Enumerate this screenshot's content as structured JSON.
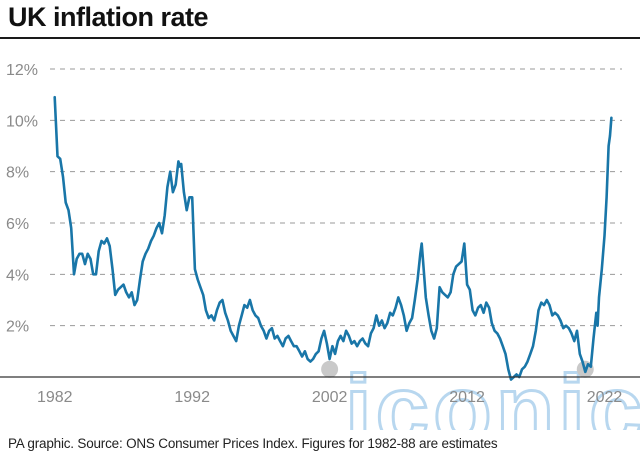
{
  "title": "UK inflation rate",
  "source": "PA graphic. Source: ONS Consumer Prices Index. Figures for 1982-88 are estimates",
  "watermark": "iconic",
  "colors": {
    "line": "#1976a8",
    "marker": "#c9c9c9",
    "grid": "#9a9a9a",
    "tick": "#8a8a8a"
  },
  "chart_data": {
    "type": "line",
    "title": "UK inflation rate",
    "xlabel": "",
    "ylabel": "",
    "y_unit": "%",
    "xlim": [
      1981.8,
      2022.4
    ],
    "ylim": [
      0,
      12
    ],
    "grid": true,
    "y_ticks": [
      {
        "value": 2,
        "label": "2%"
      },
      {
        "value": 4,
        "label": "4%"
      },
      {
        "value": 6,
        "label": "6%"
      },
      {
        "value": 8,
        "label": "8%"
      },
      {
        "value": 10,
        "label": "10%"
      },
      {
        "value": 12,
        "label": "12%"
      }
    ],
    "x_ticks": [
      {
        "value": 1982,
        "label": "1982"
      },
      {
        "value": 1992,
        "label": "1992"
      },
      {
        "value": 2002,
        "label": "2002"
      },
      {
        "value": 2012,
        "label": "2012"
      },
      {
        "value": 2022,
        "label": "2022"
      }
    ],
    "series": [
      {
        "points": [
          [
            1982.0,
            10.9
          ],
          [
            1982.2,
            8.6
          ],
          [
            1982.4,
            8.5
          ],
          [
            1982.6,
            7.8
          ],
          [
            1982.8,
            6.8
          ],
          [
            1983.0,
            6.5
          ],
          [
            1983.2,
            5.8
          ],
          [
            1983.4,
            4.0
          ],
          [
            1983.6,
            4.6
          ],
          [
            1983.8,
            4.8
          ],
          [
            1984.0,
            4.8
          ],
          [
            1984.2,
            4.4
          ],
          [
            1984.4,
            4.8
          ],
          [
            1984.6,
            4.6
          ],
          [
            1984.8,
            4.0
          ],
          [
            1985.0,
            4.0
          ],
          [
            1985.2,
            4.9
          ],
          [
            1985.4,
            5.3
          ],
          [
            1985.6,
            5.2
          ],
          [
            1985.8,
            5.4
          ],
          [
            1986.0,
            5.1
          ],
          [
            1986.2,
            4.2
          ],
          [
            1986.4,
            3.2
          ],
          [
            1986.6,
            3.4
          ],
          [
            1986.8,
            3.5
          ],
          [
            1987.0,
            3.6
          ],
          [
            1987.2,
            3.3
          ],
          [
            1987.4,
            3.1
          ],
          [
            1987.6,
            3.3
          ],
          [
            1987.8,
            2.8
          ],
          [
            1988.0,
            3.0
          ],
          [
            1988.2,
            3.8
          ],
          [
            1988.4,
            4.5
          ],
          [
            1988.6,
            4.8
          ],
          [
            1988.8,
            5.0
          ],
          [
            1989.0,
            5.3
          ],
          [
            1989.2,
            5.5
          ],
          [
            1989.4,
            5.8
          ],
          [
            1989.6,
            6.0
          ],
          [
            1989.8,
            5.6
          ],
          [
            1990.0,
            6.3
          ],
          [
            1990.2,
            7.4
          ],
          [
            1990.4,
            8.0
          ],
          [
            1990.6,
            7.2
          ],
          [
            1990.8,
            7.5
          ],
          [
            1991.0,
            8.4
          ],
          [
            1991.1,
            8.2
          ],
          [
            1991.2,
            8.3
          ],
          [
            1991.4,
            7.2
          ],
          [
            1991.6,
            6.5
          ],
          [
            1991.8,
            7.0
          ],
          [
            1992.0,
            7.0
          ],
          [
            1992.2,
            4.2
          ],
          [
            1992.4,
            3.8
          ],
          [
            1992.6,
            3.5
          ],
          [
            1992.8,
            3.2
          ],
          [
            1993.0,
            2.6
          ],
          [
            1993.2,
            2.3
          ],
          [
            1993.4,
            2.4
          ],
          [
            1993.6,
            2.2
          ],
          [
            1993.8,
            2.6
          ],
          [
            1994.0,
            2.9
          ],
          [
            1994.2,
            3.0
          ],
          [
            1994.4,
            2.5
          ],
          [
            1994.6,
            2.2
          ],
          [
            1994.8,
            1.8
          ],
          [
            1995.0,
            1.6
          ],
          [
            1995.2,
            1.4
          ],
          [
            1995.4,
            2.0
          ],
          [
            1995.6,
            2.4
          ],
          [
            1995.8,
            2.8
          ],
          [
            1996.0,
            2.7
          ],
          [
            1996.2,
            3.0
          ],
          [
            1996.4,
            2.6
          ],
          [
            1996.6,
            2.4
          ],
          [
            1996.8,
            2.3
          ],
          [
            1997.0,
            2.0
          ],
          [
            1997.2,
            1.8
          ],
          [
            1997.4,
            1.5
          ],
          [
            1997.6,
            1.8
          ],
          [
            1997.8,
            1.9
          ],
          [
            1998.0,
            1.5
          ],
          [
            1998.2,
            1.6
          ],
          [
            1998.4,
            1.4
          ],
          [
            1998.6,
            1.2
          ],
          [
            1998.8,
            1.5
          ],
          [
            1999.0,
            1.6
          ],
          [
            1999.2,
            1.4
          ],
          [
            1999.4,
            1.2
          ],
          [
            1999.6,
            1.2
          ],
          [
            1999.8,
            1.0
          ],
          [
            2000.0,
            0.8
          ],
          [
            2000.2,
            1.0
          ],
          [
            2000.4,
            0.7
          ],
          [
            2000.6,
            0.6
          ],
          [
            2000.8,
            0.7
          ],
          [
            2001.0,
            0.9
          ],
          [
            2001.2,
            1.0
          ],
          [
            2001.4,
            1.5
          ],
          [
            2001.6,
            1.8
          ],
          [
            2001.8,
            1.3
          ],
          [
            2002.0,
            0.7
          ],
          [
            2002.2,
            1.2
          ],
          [
            2002.4,
            0.9
          ],
          [
            2002.6,
            1.4
          ],
          [
            2002.8,
            1.6
          ],
          [
            2003.0,
            1.4
          ],
          [
            2003.2,
            1.8
          ],
          [
            2003.4,
            1.6
          ],
          [
            2003.6,
            1.3
          ],
          [
            2003.8,
            1.4
          ],
          [
            2004.0,
            1.2
          ],
          [
            2004.2,
            1.4
          ],
          [
            2004.4,
            1.5
          ],
          [
            2004.6,
            1.3
          ],
          [
            2004.8,
            1.2
          ],
          [
            2005.0,
            1.7
          ],
          [
            2005.2,
            1.9
          ],
          [
            2005.4,
            2.4
          ],
          [
            2005.6,
            2.0
          ],
          [
            2005.8,
            2.2
          ],
          [
            2006.0,
            1.9
          ],
          [
            2006.2,
            2.1
          ],
          [
            2006.4,
            2.5
          ],
          [
            2006.6,
            2.4
          ],
          [
            2006.8,
            2.7
          ],
          [
            2007.0,
            3.1
          ],
          [
            2007.2,
            2.8
          ],
          [
            2007.4,
            2.4
          ],
          [
            2007.6,
            1.8
          ],
          [
            2007.8,
            2.1
          ],
          [
            2008.0,
            2.3
          ],
          [
            2008.2,
            3.0
          ],
          [
            2008.4,
            3.8
          ],
          [
            2008.6,
            4.8
          ],
          [
            2008.7,
            5.2
          ],
          [
            2008.8,
            4.5
          ],
          [
            2009.0,
            3.1
          ],
          [
            2009.2,
            2.4
          ],
          [
            2009.4,
            1.8
          ],
          [
            2009.6,
            1.5
          ],
          [
            2009.8,
            1.9
          ],
          [
            2010.0,
            3.5
          ],
          [
            2010.2,
            3.3
          ],
          [
            2010.4,
            3.2
          ],
          [
            2010.6,
            3.1
          ],
          [
            2010.8,
            3.3
          ],
          [
            2011.0,
            4.0
          ],
          [
            2011.2,
            4.3
          ],
          [
            2011.4,
            4.4
          ],
          [
            2011.6,
            4.5
          ],
          [
            2011.8,
            5.2
          ],
          [
            2012.0,
            3.6
          ],
          [
            2012.2,
            3.4
          ],
          [
            2012.4,
            2.6
          ],
          [
            2012.6,
            2.4
          ],
          [
            2012.8,
            2.7
          ],
          [
            2013.0,
            2.8
          ],
          [
            2013.2,
            2.5
          ],
          [
            2013.4,
            2.9
          ],
          [
            2013.6,
            2.7
          ],
          [
            2013.8,
            2.1
          ],
          [
            2014.0,
            1.8
          ],
          [
            2014.2,
            1.7
          ],
          [
            2014.4,
            1.5
          ],
          [
            2014.6,
            1.2
          ],
          [
            2014.8,
            0.9
          ],
          [
            2015.0,
            0.3
          ],
          [
            2015.2,
            -0.1
          ],
          [
            2015.4,
            0.0
          ],
          [
            2015.6,
            0.1
          ],
          [
            2015.8,
            0.0
          ],
          [
            2016.0,
            0.3
          ],
          [
            2016.2,
            0.4
          ],
          [
            2016.4,
            0.6
          ],
          [
            2016.6,
            0.9
          ],
          [
            2016.8,
            1.2
          ],
          [
            2017.0,
            1.8
          ],
          [
            2017.2,
            2.6
          ],
          [
            2017.4,
            2.9
          ],
          [
            2017.6,
            2.8
          ],
          [
            2017.8,
            3.0
          ],
          [
            2018.0,
            2.8
          ],
          [
            2018.2,
            2.4
          ],
          [
            2018.4,
            2.5
          ],
          [
            2018.6,
            2.4
          ],
          [
            2018.8,
            2.2
          ],
          [
            2019.0,
            1.9
          ],
          [
            2019.2,
            2.0
          ],
          [
            2019.4,
            1.9
          ],
          [
            2019.6,
            1.7
          ],
          [
            2019.8,
            1.4
          ],
          [
            2020.0,
            1.8
          ],
          [
            2020.2,
            0.9
          ],
          [
            2020.4,
            0.6
          ],
          [
            2020.6,
            0.2
          ],
          [
            2020.8,
            0.5
          ],
          [
            2021.0,
            0.4
          ],
          [
            2021.2,
            1.5
          ],
          [
            2021.4,
            2.5
          ],
          [
            2021.5,
            2.0
          ],
          [
            2021.6,
            3.1
          ],
          [
            2021.8,
            4.2
          ],
          [
            2022.0,
            5.5
          ],
          [
            2022.15,
            7.0
          ],
          [
            2022.3,
            9.0
          ],
          [
            2022.4,
            9.4
          ],
          [
            2022.5,
            10.1
          ]
        ]
      }
    ],
    "highlight_points": [
      [
        2002.0,
        0.3
      ],
      [
        2020.6,
        0.3
      ]
    ]
  }
}
